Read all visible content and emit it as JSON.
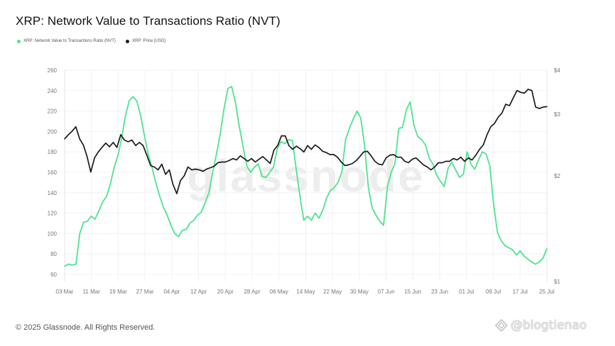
{
  "title": "XRP: Network Value to Transactions Ratio (NVT)",
  "legend": [
    {
      "label": "XRP: Network Value to Transactions Ratio (NVT)",
      "color": "#4ee38f"
    },
    {
      "label": "XRP: Price [USD]",
      "color": "#1a1a1a"
    }
  ],
  "footer": {
    "copyright": "© 2025 Glassnode. All Rights Reserved.",
    "badge_text": "@blogtienao",
    "watermark": "glassnode"
  },
  "chart_data": {
    "type": "line",
    "x_ticks": [
      "03 Mar",
      "11 Mar",
      "19 Mar",
      "27 Mar",
      "04 Apr",
      "12 Apr",
      "20 Apr",
      "28 Apr",
      "06 May",
      "14 May",
      "22 May",
      "30 May",
      "07 Jun",
      "15 Jun",
      "23 Jun",
      "01 Jul",
      "09 Jul",
      "17 Jul",
      "25 Jul"
    ],
    "y_left": {
      "min": 53,
      "max": 260,
      "ticks": [
        60,
        80,
        100,
        120,
        140,
        160,
        180,
        200,
        220,
        240,
        260
      ]
    },
    "y_right": {
      "scale": "log",
      "min": 1,
      "max": 4,
      "ticks": [
        {
          "value": 1,
          "label": "$1"
        },
        {
          "value": 2,
          "label": "$2"
        },
        {
          "value": 3,
          "label": "$3"
        },
        {
          "value": 4,
          "label": "$4"
        }
      ]
    },
    "grid": true,
    "series": [
      {
        "name": "XRP: Network Value to Transactions Ratio (NVT)",
        "color": "#4ee38f",
        "axis": "left",
        "points": [
          [
            0,
            68
          ],
          [
            1,
            70
          ],
          [
            2,
            69
          ],
          [
            3,
            70
          ],
          [
            4,
            100
          ],
          [
            5,
            111
          ],
          [
            6,
            112
          ],
          [
            7,
            117
          ],
          [
            8,
            114
          ],
          [
            9,
            122
          ],
          [
            10,
            131
          ],
          [
            11,
            136
          ],
          [
            12,
            148
          ],
          [
            13,
            164
          ],
          [
            14,
            176
          ],
          [
            15,
            193
          ],
          [
            16,
            215
          ],
          [
            17,
            230
          ],
          [
            18,
            234
          ],
          [
            19,
            230
          ],
          [
            20,
            216
          ],
          [
            21,
            196
          ],
          [
            22,
            178
          ],
          [
            23,
            165
          ],
          [
            24,
            150
          ],
          [
            25,
            137
          ],
          [
            26,
            126
          ],
          [
            27,
            118
          ],
          [
            28,
            108
          ],
          [
            29,
            100
          ],
          [
            30,
            97
          ],
          [
            31,
            103
          ],
          [
            32,
            104
          ],
          [
            33,
            110
          ],
          [
            34,
            113
          ],
          [
            35,
            118
          ],
          [
            36,
            121
          ],
          [
            37,
            130
          ],
          [
            38,
            140
          ],
          [
            39,
            160
          ],
          [
            40,
            178
          ],
          [
            41,
            198
          ],
          [
            42,
            223
          ],
          [
            43,
            242
          ],
          [
            44,
            244
          ],
          [
            45,
            228
          ],
          [
            46,
            205
          ],
          [
            47,
            185
          ],
          [
            48,
            166
          ],
          [
            49,
            160
          ],
          [
            50,
            165
          ],
          [
            51,
            168
          ],
          [
            52,
            156
          ],
          [
            53,
            155
          ],
          [
            54,
            160
          ],
          [
            55,
            165
          ],
          [
            56,
            183
          ],
          [
            57,
            190
          ],
          [
            58,
            188
          ],
          [
            59,
            192
          ],
          [
            60,
            191
          ],
          [
            61,
            163
          ],
          [
            62,
            136
          ],
          [
            63,
            113
          ],
          [
            64,
            117
          ],
          [
            65,
            113
          ],
          [
            66,
            120
          ],
          [
            67,
            115
          ],
          [
            68,
            123
          ],
          [
            69,
            135
          ],
          [
            70,
            142
          ],
          [
            71,
            145
          ],
          [
            72,
            150
          ],
          [
            73,
            160
          ],
          [
            74,
            192
          ],
          [
            75,
            203
          ],
          [
            76,
            212
          ],
          [
            77,
            220
          ],
          [
            78,
            213
          ],
          [
            79,
            186
          ],
          [
            80,
            145
          ],
          [
            81,
            125
          ],
          [
            82,
            118
          ],
          [
            83,
            112
          ],
          [
            84,
            108
          ],
          [
            85,
            145
          ],
          [
            86,
            160
          ],
          [
            87,
            168
          ],
          [
            88,
            203
          ],
          [
            89,
            204
          ],
          [
            90,
            221
          ],
          [
            91,
            229
          ],
          [
            92,
            206
          ],
          [
            93,
            195
          ],
          [
            94,
            192
          ],
          [
            95,
            187
          ],
          [
            96,
            174
          ],
          [
            97,
            168
          ],
          [
            98,
            157
          ],
          [
            99,
            151
          ],
          [
            100,
            146
          ],
          [
            101,
            164
          ],
          [
            102,
            170
          ],
          [
            103,
            162
          ],
          [
            104,
            155
          ],
          [
            105,
            158
          ],
          [
            106,
            180
          ],
          [
            107,
            168
          ],
          [
            108,
            163
          ],
          [
            109,
            172
          ],
          [
            110,
            180
          ],
          [
            111,
            178
          ],
          [
            112,
            166
          ],
          [
            113,
            128
          ],
          [
            114,
            101
          ],
          [
            115,
            93
          ],
          [
            116,
            88
          ],
          [
            117,
            86
          ],
          [
            118,
            84
          ],
          [
            119,
            79
          ],
          [
            120,
            83
          ],
          [
            121,
            78
          ],
          [
            122,
            75
          ],
          [
            123,
            72
          ],
          [
            124,
            70
          ],
          [
            125,
            72
          ],
          [
            126,
            76
          ],
          [
            127,
            85
          ]
        ]
      },
      {
        "name": "XRP: Price [USD]",
        "color": "#1a1a1a",
        "axis": "right",
        "points": [
          [
            0,
            2.55
          ],
          [
            1,
            2.62
          ],
          [
            2,
            2.68
          ],
          [
            3,
            2.76
          ],
          [
            4,
            2.55
          ],
          [
            5,
            2.45
          ],
          [
            6,
            2.27
          ],
          [
            7,
            2.05
          ],
          [
            8,
            2.25
          ],
          [
            9,
            2.34
          ],
          [
            10,
            2.41
          ],
          [
            11,
            2.48
          ],
          [
            12,
            2.42
          ],
          [
            13,
            2.49
          ],
          [
            14,
            2.41
          ],
          [
            15,
            2.62
          ],
          [
            16,
            2.53
          ],
          [
            17,
            2.5
          ],
          [
            18,
            2.53
          ],
          [
            19,
            2.44
          ],
          [
            20,
            2.49
          ],
          [
            21,
            2.44
          ],
          [
            22,
            2.29
          ],
          [
            23,
            2.14
          ],
          [
            24,
            2.12
          ],
          [
            25,
            2.08
          ],
          [
            26,
            2.16
          ],
          [
            27,
            2.02
          ],
          [
            28,
            2.08
          ],
          [
            29,
            1.89
          ],
          [
            30,
            1.78
          ],
          [
            31,
            1.94
          ],
          [
            32,
            2.0
          ],
          [
            33,
            2.12
          ],
          [
            34,
            2.08
          ],
          [
            35,
            2.09
          ],
          [
            36,
            2.08
          ],
          [
            37,
            2.06
          ],
          [
            38,
            2.09
          ],
          [
            39,
            2.11
          ],
          [
            40,
            2.13
          ],
          [
            41,
            2.18
          ],
          [
            42,
            2.19
          ],
          [
            43,
            2.19
          ],
          [
            44,
            2.21
          ],
          [
            45,
            2.24
          ],
          [
            46,
            2.22
          ],
          [
            47,
            2.28
          ],
          [
            48,
            2.24
          ],
          [
            49,
            2.2
          ],
          [
            50,
            2.24
          ],
          [
            51,
            2.19
          ],
          [
            52,
            2.23
          ],
          [
            53,
            2.27
          ],
          [
            54,
            2.22
          ],
          [
            55,
            2.17
          ],
          [
            56,
            2.37
          ],
          [
            57,
            2.44
          ],
          [
            58,
            2.6
          ],
          [
            59,
            2.6
          ],
          [
            60,
            2.44
          ],
          [
            61,
            2.38
          ],
          [
            62,
            2.43
          ],
          [
            63,
            2.39
          ],
          [
            64,
            2.34
          ],
          [
            65,
            2.44
          ],
          [
            66,
            2.38
          ],
          [
            67,
            2.45
          ],
          [
            68,
            2.41
          ],
          [
            69,
            2.35
          ],
          [
            70,
            2.33
          ],
          [
            71,
            2.3
          ],
          [
            72,
            2.3
          ],
          [
            73,
            2.26
          ],
          [
            74,
            2.19
          ],
          [
            75,
            2.14
          ],
          [
            76,
            2.15
          ],
          [
            77,
            2.17
          ],
          [
            78,
            2.21
          ],
          [
            79,
            2.27
          ],
          [
            80,
            2.34
          ],
          [
            81,
            2.35
          ],
          [
            82,
            2.28
          ],
          [
            83,
            2.2
          ],
          [
            84,
            2.16
          ],
          [
            85,
            2.15
          ],
          [
            86,
            2.25
          ],
          [
            87,
            2.29
          ],
          [
            88,
            2.3
          ],
          [
            89,
            2.26
          ],
          [
            90,
            2.26
          ],
          [
            91,
            2.2
          ],
          [
            92,
            2.18
          ],
          [
            93,
            2.23
          ],
          [
            94,
            2.25
          ],
          [
            95,
            2.2
          ],
          [
            96,
            2.15
          ],
          [
            97,
            2.12
          ],
          [
            98,
            2.08
          ],
          [
            99,
            2.12
          ],
          [
            100,
            2.18
          ],
          [
            101,
            2.18
          ],
          [
            102,
            2.2
          ],
          [
            103,
            2.2
          ],
          [
            104,
            2.24
          ],
          [
            105,
            2.22
          ],
          [
            106,
            2.26
          ],
          [
            107,
            2.2
          ],
          [
            108,
            2.25
          ],
          [
            109,
            2.22
          ],
          [
            110,
            2.29
          ],
          [
            111,
            2.38
          ],
          [
            112,
            2.45
          ],
          [
            113,
            2.62
          ],
          [
            114,
            2.76
          ],
          [
            115,
            2.82
          ],
          [
            116,
            2.94
          ],
          [
            117,
            3.02
          ],
          [
            118,
            3.2
          ],
          [
            119,
            3.17
          ],
          [
            120,
            3.33
          ],
          [
            121,
            3.5
          ],
          [
            122,
            3.46
          ],
          [
            123,
            3.44
          ],
          [
            124,
            3.53
          ],
          [
            125,
            3.5
          ],
          [
            126,
            3.14
          ],
          [
            127,
            3.11
          ],
          [
            128,
            3.14
          ],
          [
            129,
            3.15
          ]
        ]
      }
    ]
  }
}
